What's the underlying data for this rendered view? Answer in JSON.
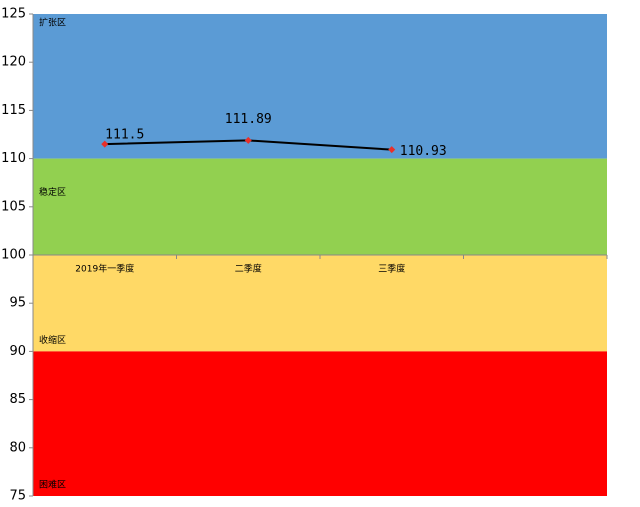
{
  "chart_data": {
    "type": "line",
    "categories": [
      "2019年一季度",
      "二季度",
      "三季度",
      null
    ],
    "series": [
      {
        "color": "#000000",
        "marker_color": "#e8302a",
        "values": [
          111.5,
          111.89,
          110.93,
          null
        ]
      }
    ],
    "ylim": [
      75,
      125
    ],
    "yticks": [
      75,
      80,
      85,
      90,
      95,
      100,
      105,
      110,
      115,
      120,
      125
    ],
    "x_axis_at": 100,
    "zones": [
      {
        "label": "扩张区",
        "from": 110,
        "to": 125,
        "color": "#5b9bd5"
      },
      {
        "label": "稳定区",
        "from": 100,
        "to": 110,
        "color": "#92d050"
      },
      {
        "label": "收缩区",
        "from": 90,
        "to": 100,
        "color": "#ffd966"
      },
      {
        "label": "困难区",
        "from": 75,
        "to": 90,
        "color": "#ff0000"
      }
    ]
  }
}
